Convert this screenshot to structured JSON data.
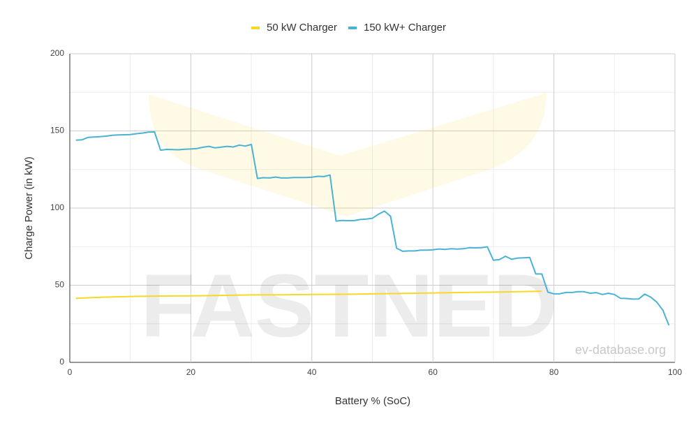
{
  "chart_data": {
    "type": "line",
    "x_label": "Battery % (SoC)",
    "y_label": "Charge Power (in kW)",
    "watermark": "FASTNED",
    "credit": "ev-database.org",
    "xlim": [
      0,
      100
    ],
    "xticks": [
      0,
      20,
      40,
      60,
      80,
      100
    ],
    "xminor_ticks": [
      10,
      30,
      50,
      70,
      90
    ],
    "ylim": [
      0,
      200
    ],
    "yticks": [
      0,
      50,
      100,
      150,
      200
    ],
    "yminor_ticks": [
      25,
      75,
      125,
      175
    ],
    "grid": true,
    "legend": "top",
    "series": [
      {
        "name": "50 kW Charger",
        "color": "#f7d827",
        "x": [
          1,
          5,
          10,
          15,
          20,
          25,
          30,
          35,
          40,
          45,
          50,
          55,
          60,
          65,
          70,
          75,
          78
        ],
        "values": [
          41.5,
          42.2,
          42.7,
          43,
          43.1,
          43.4,
          43.7,
          43.8,
          44,
          44.1,
          44.4,
          44.7,
          45,
          45.3,
          45.5,
          45.9,
          46.1
        ]
      },
      {
        "name": "150 kW+ Charger",
        "color": "#4ab3d3",
        "x": [
          1,
          2,
          3,
          4,
          5,
          6,
          7,
          8,
          9,
          10,
          11,
          12,
          13,
          14,
          15,
          16,
          17,
          18,
          19,
          20,
          21,
          22,
          23,
          24,
          25,
          26,
          27,
          28,
          29,
          30,
          31,
          32,
          33,
          34,
          35,
          36,
          37,
          38,
          39,
          40,
          41,
          42,
          43,
          44,
          45,
          46,
          47,
          48,
          49,
          50,
          51,
          52,
          53,
          54,
          55,
          56,
          57,
          58,
          59,
          60,
          61,
          62,
          63,
          64,
          65,
          66,
          67,
          68,
          69,
          70,
          71,
          72,
          73,
          74,
          75,
          76,
          77,
          78,
          79,
          80,
          81,
          82,
          83,
          84,
          85,
          86,
          87,
          88,
          89,
          90,
          91,
          92,
          93,
          94,
          95,
          96,
          97,
          98,
          99
        ],
        "values": [
          144,
          144.2,
          145.8,
          146,
          146.3,
          146.6,
          147.2,
          147.4,
          147.5,
          147.6,
          148.2,
          148.6,
          149.2,
          149.3,
          137.5,
          138,
          137.9,
          137.8,
          138.1,
          138.3,
          138.6,
          139.4,
          140,
          139,
          139.5,
          140,
          139.6,
          140.8,
          140.2,
          141.2,
          119.2,
          119.7,
          119.5,
          120.1,
          119.5,
          119.5,
          119.8,
          119.8,
          119.8,
          120,
          120.6,
          120.4,
          121.4,
          91.6,
          92,
          91.8,
          91.9,
          92.6,
          92.9,
          93.4,
          96,
          98,
          94.7,
          74,
          72,
          72.2,
          72.2,
          72.7,
          72.7,
          73,
          73.5,
          73.2,
          73.6,
          73.4,
          73.6,
          74.3,
          74.2,
          74.3,
          74.9,
          66.2,
          66.6,
          68.8,
          66.8,
          67.6,
          67.8,
          68,
          57.3,
          57.3,
          45.5,
          44.4,
          44.5,
          45.3,
          45.3,
          45.8,
          45.8,
          44.8,
          45.2,
          44,
          44.8,
          44,
          41.5,
          41.4,
          41,
          41.1,
          44.2,
          42.3,
          39,
          33.8,
          24
        ]
      }
    ]
  }
}
